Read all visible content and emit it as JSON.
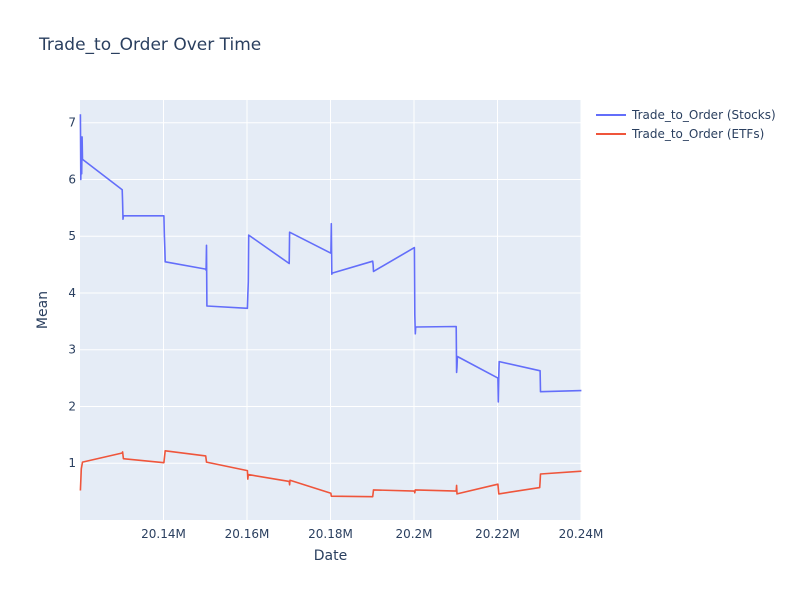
{
  "chart_data": {
    "type": "line",
    "title": "Trade_to_Order Over Time",
    "xlabel": "Date",
    "ylabel": "Mean",
    "xlim": [
      20120000,
      20240000
    ],
    "ylim": [
      0,
      7.4
    ],
    "x_ticks": [
      20140000,
      20160000,
      20180000,
      20200000,
      20220000,
      20240000
    ],
    "x_tick_labels": [
      "20.14M",
      "20.16M",
      "20.18M",
      "20.2M",
      "20.22M",
      "20.24M"
    ],
    "y_ticks": [
      1,
      2,
      3,
      4,
      5,
      6,
      7
    ],
    "y_tick_labels": [
      "1",
      "2",
      "3",
      "4",
      "5",
      "6",
      "7"
    ],
    "grid": true,
    "legend_position": "top-right outside",
    "plot_background": "#E5ECF6",
    "series": [
      {
        "name": "Trade_to_Order (Stocks)",
        "color": "#636EFA",
        "x": [
          20120102,
          20120201,
          20120301,
          20120401,
          20120502,
          20120601,
          20120702,
          20130102,
          20130201,
          20130301,
          20130401,
          20140102,
          20140201,
          20140301,
          20140401,
          20150102,
          20150201,
          20150301,
          20150401,
          20160104,
          20160201,
          20160301,
          20160401,
          20170103,
          20170201,
          20180102,
          20180201,
          20180301,
          20180401,
          20190102,
          20190201,
          20190301,
          20200102,
          20200201,
          20200301,
          20200401,
          20210104,
          20210201,
          20210301,
          20210401,
          20220103,
          20220201,
          20220301,
          20220401,
          20230103,
          20230201,
          20230301,
          20240102
        ],
        "y": [
          7.15,
          6.0,
          6.75,
          6.1,
          6.75,
          6.35,
          6.35,
          5.82,
          5.6,
          5.3,
          5.36,
          5.36,
          5.05,
          4.8,
          4.55,
          4.42,
          4.4,
          4.84,
          3.77,
          3.73,
          3.95,
          4.2,
          5.02,
          4.52,
          5.07,
          4.7,
          5.22,
          4.33,
          4.35,
          4.56,
          4.5,
          4.38,
          4.8,
          3.62,
          3.28,
          3.4,
          3.41,
          2.6,
          2.7,
          2.88,
          2.5,
          2.08,
          2.55,
          2.79,
          2.63,
          2.63,
          2.26,
          2.28
        ]
      },
      {
        "name": "Trade_to_Order (ETFs)",
        "color": "#EF553B",
        "x": [
          20120102,
          20120301,
          20120601,
          20130102,
          20130201,
          20130401,
          20140102,
          20140401,
          20150102,
          20150301,
          20160102,
          20160201,
          20160301,
          20170102,
          20170201,
          20170301,
          20180102,
          20180201,
          20190102,
          20190301,
          20200102,
          20200201,
          20200301,
          20210102,
          20210201,
          20210301,
          20220102,
          20220301,
          20230102,
          20230201,
          20230301,
          20240102
        ],
        "y": [
          0.52,
          0.9,
          1.02,
          1.18,
          1.2,
          1.08,
          1.01,
          1.22,
          1.13,
          1.02,
          0.87,
          0.72,
          0.8,
          0.68,
          0.62,
          0.7,
          0.47,
          0.42,
          0.41,
          0.53,
          0.51,
          0.48,
          0.53,
          0.51,
          0.61,
          0.46,
          0.63,
          0.46,
          0.57,
          0.68,
          0.81,
          0.86
        ]
      }
    ]
  }
}
